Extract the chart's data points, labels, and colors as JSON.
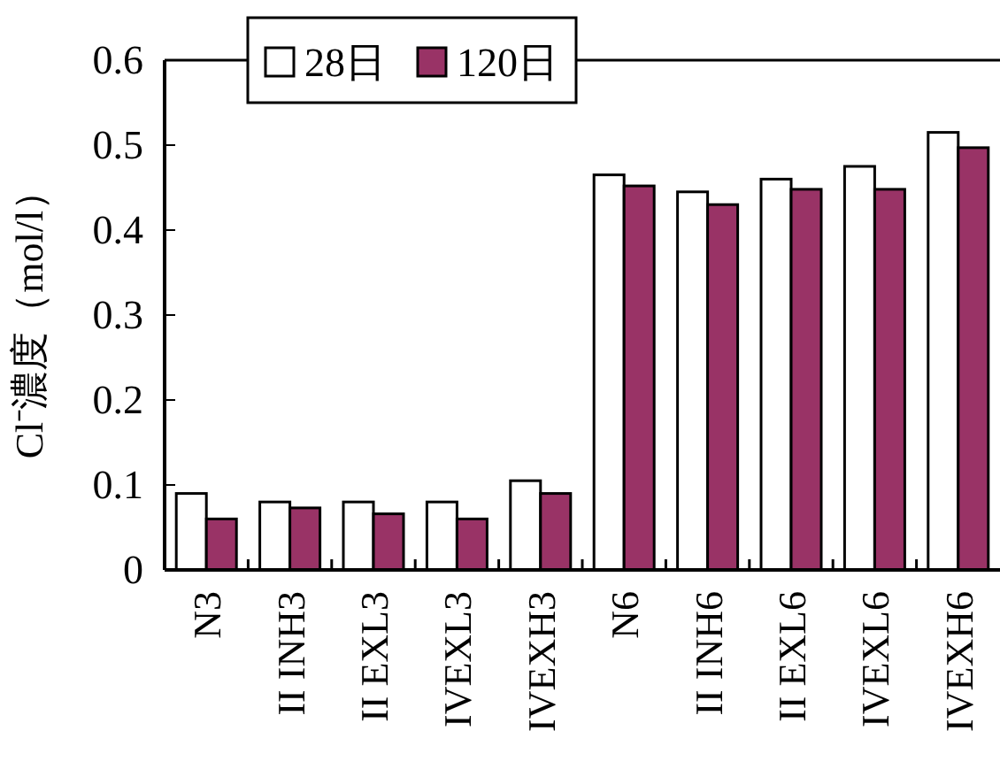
{
  "chart_data": {
    "type": "bar",
    "ylabel": "Cl⁻濃度（mol/l）",
    "categories": [
      "N3",
      "II INH3",
      "II EXL3",
      "IVEXL3",
      "IVEXH3",
      "N6",
      "II INH6",
      "II EXL6",
      "IVEXL6",
      "IVEXH6"
    ],
    "series": [
      {
        "name": "28日",
        "color": "#ffffff",
        "values": [
          0.09,
          0.08,
          0.08,
          0.08,
          0.105,
          0.465,
          0.445,
          0.46,
          0.475,
          0.515
        ]
      },
      {
        "name": "120日",
        "color": "#993366",
        "values": [
          0.06,
          0.073,
          0.066,
          0.06,
          0.09,
          0.452,
          0.43,
          0.448,
          0.448,
          0.497
        ]
      }
    ],
    "ylim": [
      0,
      0.6
    ],
    "yticks": [
      {
        "value": 0,
        "label": "0"
      },
      0.1,
      0.2,
      0.3,
      0.4,
      0.5,
      0.6
    ],
    "grid": false,
    "legend": "top"
  }
}
